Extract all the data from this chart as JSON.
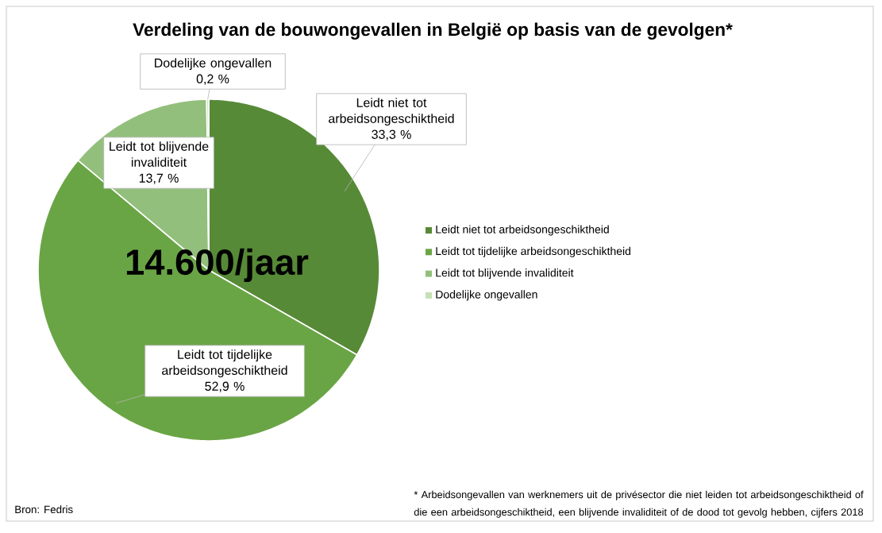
{
  "chart_data": {
    "type": "pie",
    "title": "Verdeling van de bouwongevallen in België op basis van de gevolgen*",
    "categories": [
      "Leidt niet tot arbeidsongeschiktheid",
      "Leidt tot tijdelijke arbeidsongeschiktheid",
      "Leidt tot blijvende invaliditeit",
      "Dodelijke ongevallen"
    ],
    "values": [
      33.3,
      52.9,
      13.7,
      0.2
    ],
    "value_labels": [
      "33,3 %",
      "52,9 %",
      "13,7 %",
      "0,2 %"
    ],
    "colors": [
      "#578a37",
      "#6aa545",
      "#93bf7c",
      "#c5e0b4"
    ],
    "legend": "right",
    "annotations": [
      "14.600/jaar",
      "Bron: Fedris",
      "* Arbeidsongevallen van werknemers uit de privésector die niet leiden tot arbeidsongeschiktheid of die een arbeidsongeschiktheid, een blijvende invaliditeit of de dood tot gevolg hebben, cijfers 2018"
    ]
  }
}
